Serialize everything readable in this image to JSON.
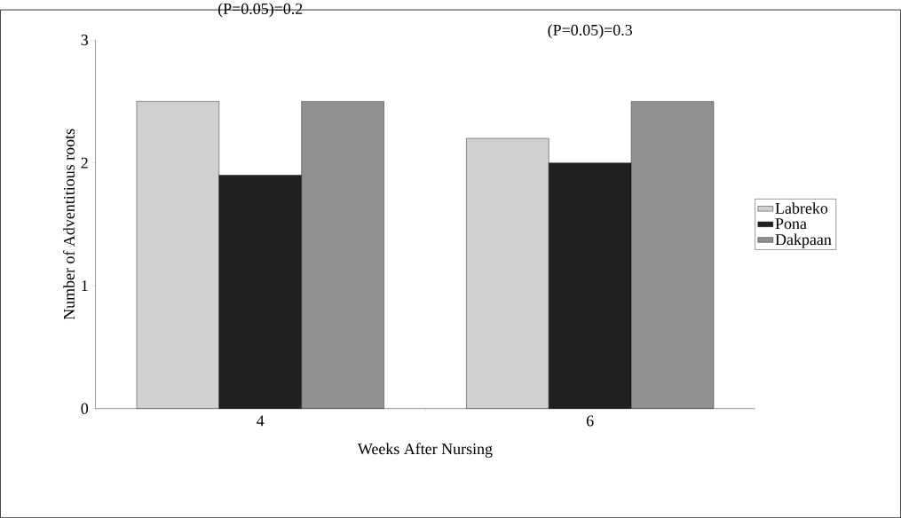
{
  "chart_data": {
    "type": "bar",
    "xlabel": "Weeks After Nursing",
    "ylabel": "Number of Adventitious roots",
    "categories": [
      "4",
      "6"
    ],
    "series": [
      {
        "name": "Labreko",
        "color": "#d0d0d0",
        "values": [
          2.5,
          2.2
        ]
      },
      {
        "name": "Pona",
        "color": "#202020",
        "values": [
          1.9,
          2.0
        ]
      },
      {
        "name": "Dakpaan",
        "color": "#909090",
        "values": [
          2.5,
          2.5
        ]
      }
    ],
    "ylim": [
      0,
      3
    ],
    "yticks": [
      0,
      1,
      2,
      3
    ],
    "grid": false,
    "legend": "right",
    "annotations": [
      "(P=0.05)=0.2",
      "(P=0.05)=0.3"
    ]
  }
}
